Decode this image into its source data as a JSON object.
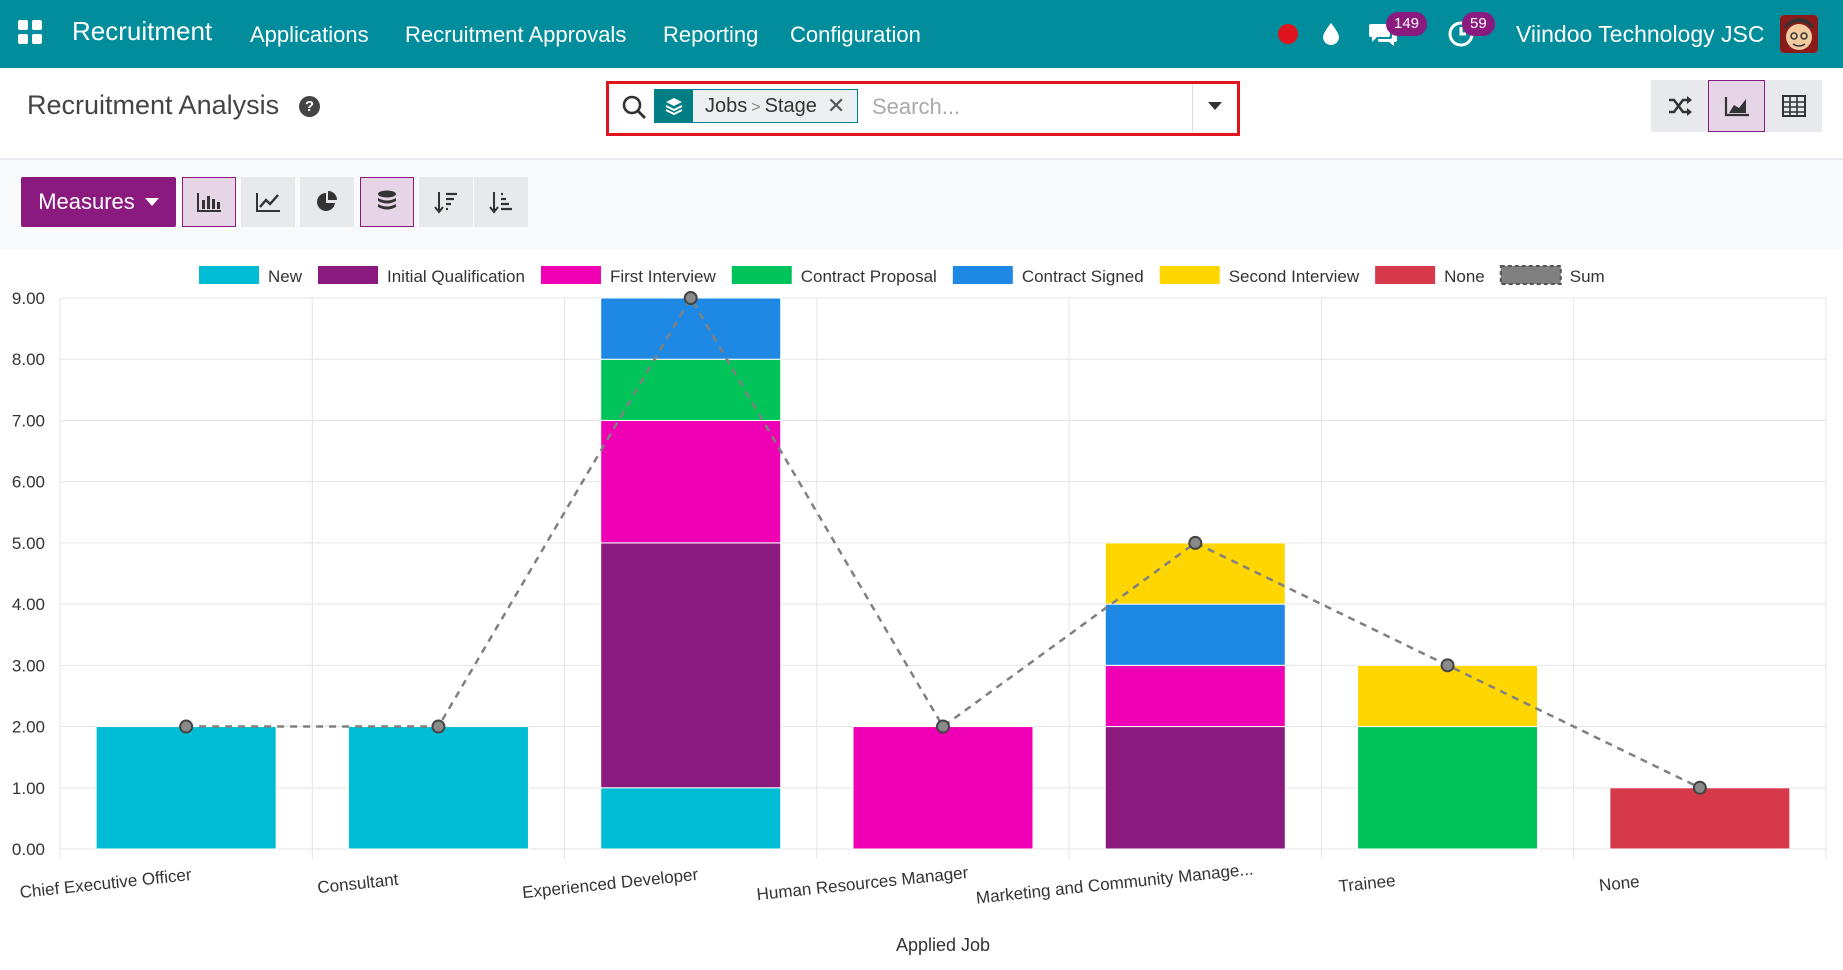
{
  "nav": {
    "app_name": "Recruitment",
    "menu": [
      "Applications",
      "Recruitment Approvals",
      "Reporting",
      "Configuration"
    ],
    "messages_count": "149",
    "activities_count": "59",
    "company": "Viindoo Technology JSC"
  },
  "control_panel": {
    "title": "Recruitment Analysis",
    "facet": {
      "group1": "Jobs",
      "group2": "Stage"
    },
    "search_placeholder": "Search...",
    "measures_label": "Measures"
  },
  "colors": {
    "nav_bg": "#018d9c",
    "accent": "#8b1a7f",
    "search_highlight": "#e0141e"
  },
  "chart_data": {
    "type": "bar",
    "stacked": true,
    "xlabel": "Applied Job",
    "ylabel": "",
    "ylim": [
      0,
      9
    ],
    "y_ticks": [
      "0.00",
      "1.00",
      "2.00",
      "3.00",
      "4.00",
      "5.00",
      "6.00",
      "7.00",
      "8.00",
      "9.00"
    ],
    "categories": [
      "Chief Executive Officer",
      "Consultant",
      "Experienced Developer",
      "Human Resources Manager",
      "Marketing and Community Manage...",
      "Trainee",
      "None"
    ],
    "legend_position": "top",
    "grid": true,
    "series": [
      {
        "name": "New",
        "color": "#00bcd4",
        "values": [
          2,
          2,
          1,
          0,
          0,
          0,
          0
        ]
      },
      {
        "name": "Initial Qualification",
        "color": "#8b1a7f",
        "values": [
          0,
          0,
          4,
          0,
          2,
          0,
          0
        ]
      },
      {
        "name": "First Interview",
        "color": "#f000b4",
        "values": [
          0,
          0,
          2,
          2,
          1,
          0,
          0
        ]
      },
      {
        "name": "Contract Proposal",
        "color": "#00c45a",
        "values": [
          0,
          0,
          1,
          0,
          0,
          2,
          0
        ]
      },
      {
        "name": "Contract Signed",
        "color": "#1e88e5",
        "values": [
          0,
          0,
          1,
          0,
          1,
          0,
          0
        ]
      },
      {
        "name": "Second Interview",
        "color": "#ffd600",
        "values": [
          0,
          0,
          0,
          0,
          1,
          1,
          0
        ]
      },
      {
        "name": "None",
        "color": "#d63a4a",
        "values": [
          0,
          0,
          0,
          0,
          0,
          0,
          1
        ]
      }
    ],
    "sum": {
      "name": "Sum",
      "color": "#808080",
      "values": [
        2,
        2,
        9,
        2,
        5,
        3,
        1
      ]
    }
  }
}
